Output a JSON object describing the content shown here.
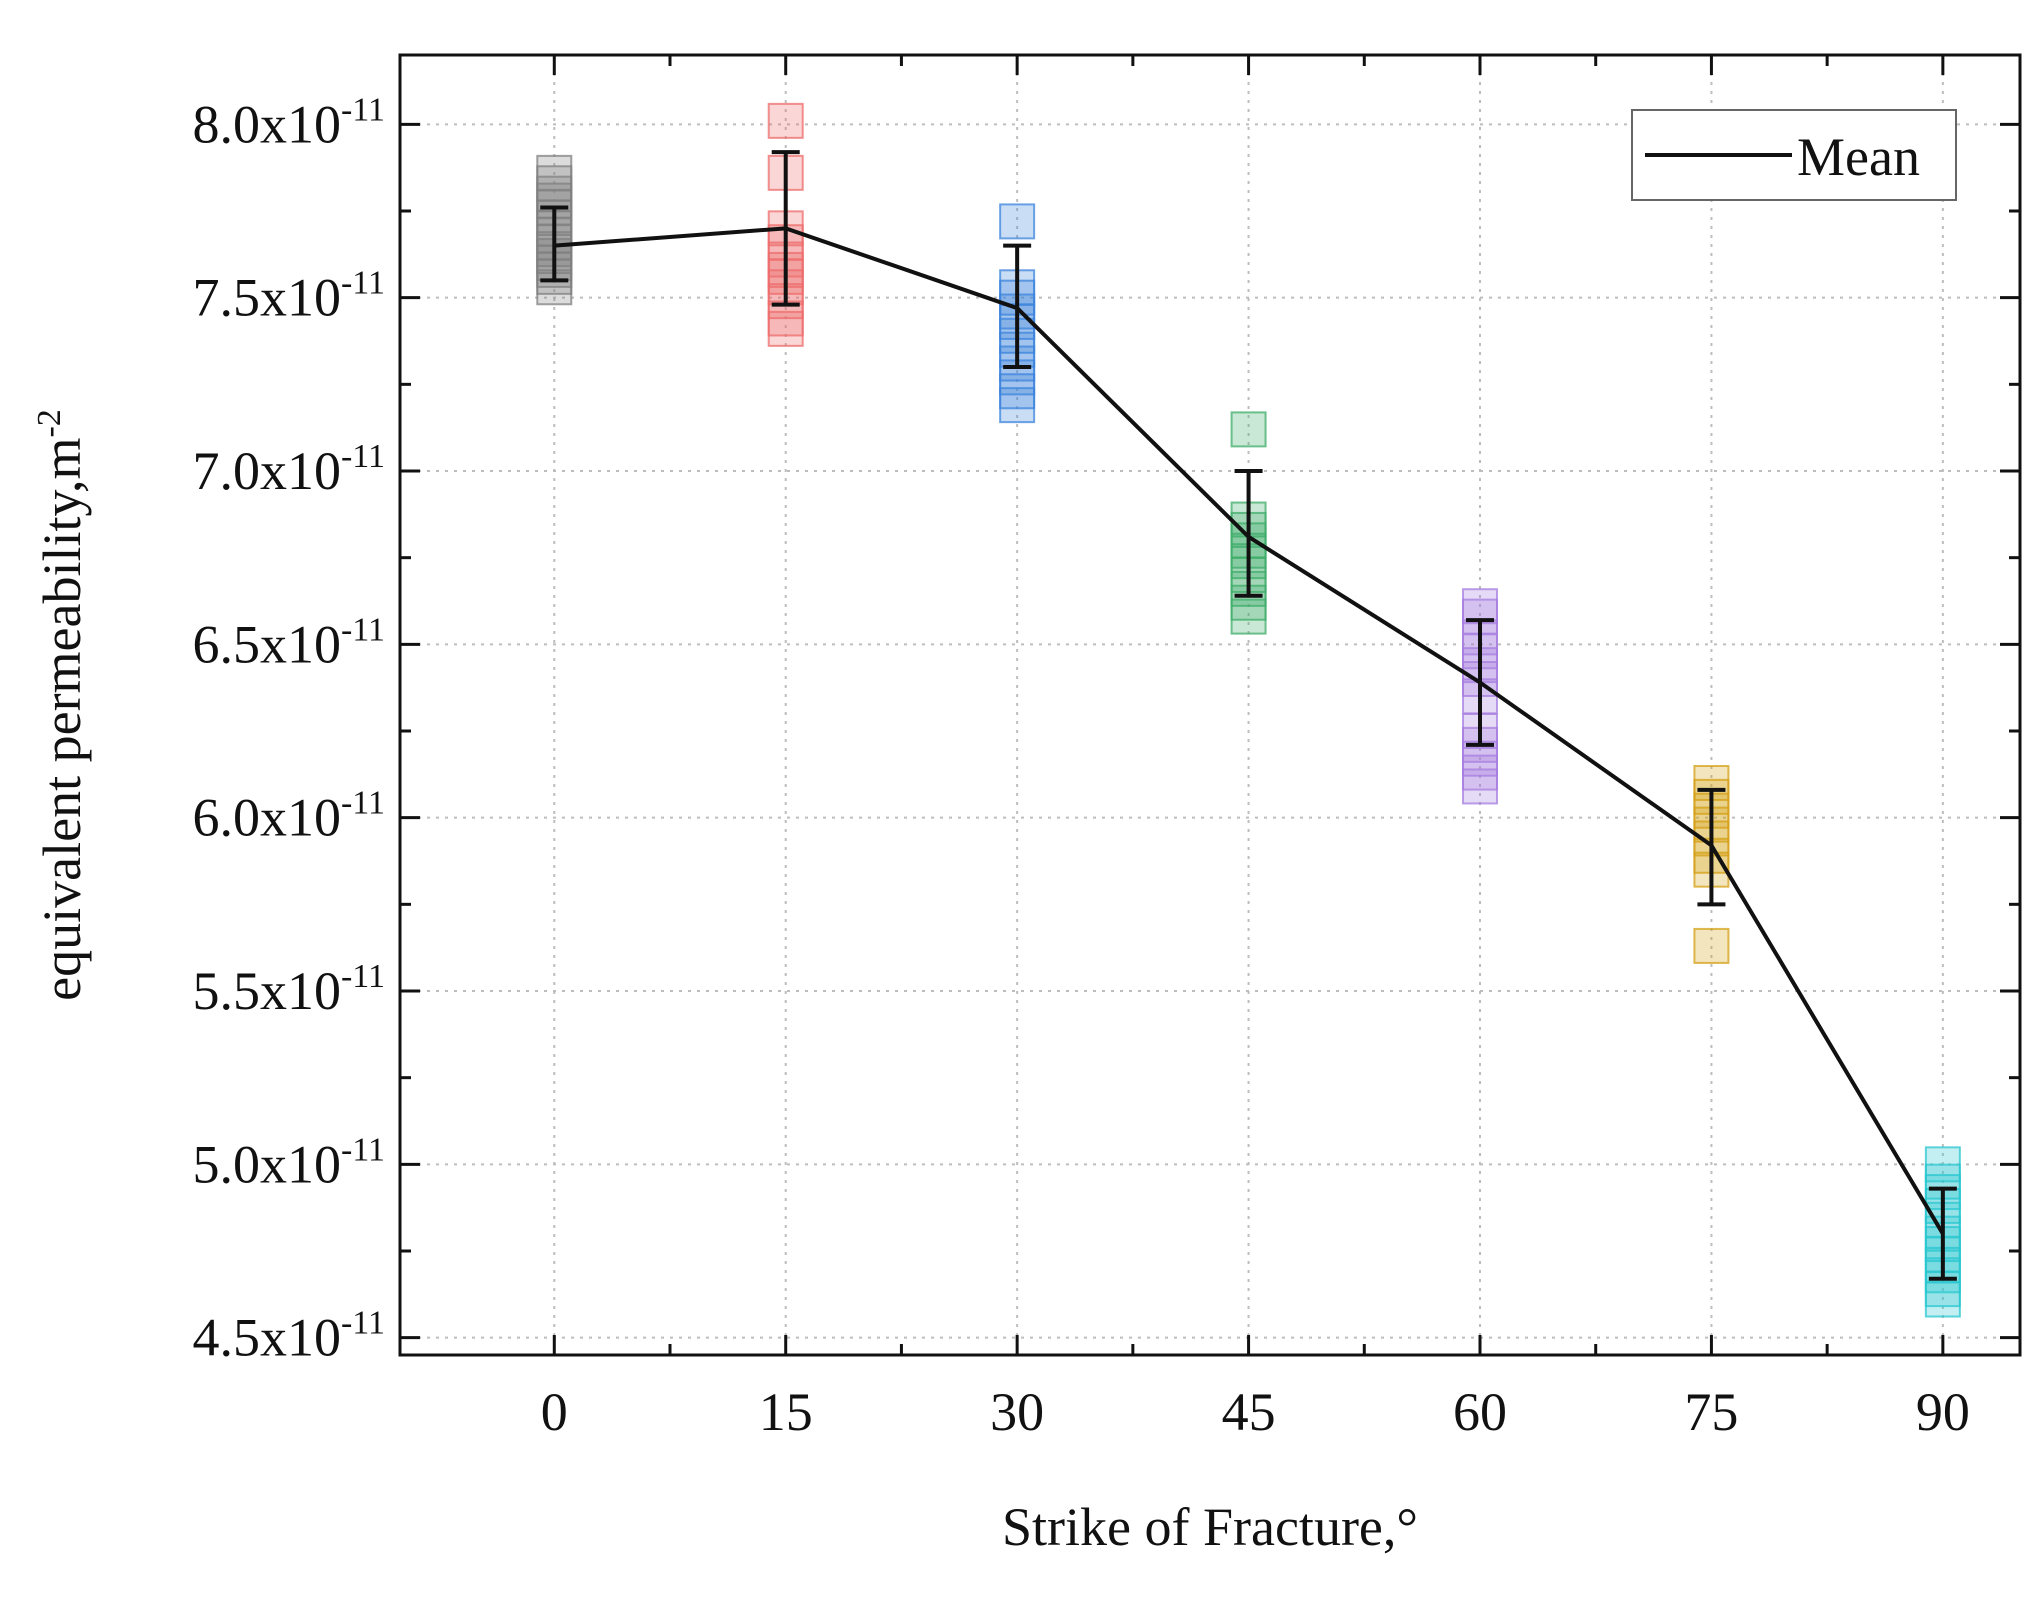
{
  "chart_data": {
    "type": "scatter",
    "xlabel": "Strike of Fracture,°",
    "ylabel": "equivalent permeability,m",
    "ylabel_superscript": "-2",
    "y_tick_exponent": "-11",
    "xlim": [
      -10,
      95
    ],
    "ylim": [
      4.45,
      8.2
    ],
    "x_ticks": [
      0,
      15,
      30,
      45,
      60,
      75,
      90
    ],
    "x_tick_labels": [
      "0",
      "15",
      "30",
      "45",
      "60",
      "75",
      "90"
    ],
    "y_ticks": [
      4.5,
      5.0,
      5.5,
      6.0,
      6.5,
      7.0,
      7.5,
      8.0
    ],
    "y_tick_labels": [
      "4.5x10",
      "5.0x10",
      "5.5x10",
      "6.0x10",
      "6.5x10",
      "7.0x10",
      "7.5x10",
      "8.0x10"
    ],
    "grid": true,
    "legend": {
      "position": "top-right",
      "entries": [
        "Mean"
      ]
    },
    "series": [
      {
        "name": "Mean",
        "x": [
          0,
          15,
          30,
          45,
          60,
          75,
          90
        ],
        "y": [
          7.65,
          7.7,
          7.47,
          6.81,
          6.39,
          5.92,
          4.8
        ],
        "color": "#111111"
      }
    ],
    "error_bars": [
      {
        "x": 0,
        "low": 7.55,
        "high": 7.76
      },
      {
        "x": 15,
        "low": 7.48,
        "high": 7.92
      },
      {
        "x": 30,
        "low": 7.3,
        "high": 7.65
      },
      {
        "x": 45,
        "low": 6.64,
        "high": 7.0
      },
      {
        "x": 60,
        "low": 6.21,
        "high": 6.57
      },
      {
        "x": 75,
        "low": 5.75,
        "high": 6.08
      },
      {
        "x": 90,
        "low": 4.67,
        "high": 4.93
      }
    ],
    "samples": [
      {
        "x": 0,
        "color": "#808080",
        "values": [
          7.53,
          7.56,
          7.58,
          7.6,
          7.62,
          7.64,
          7.66,
          7.68,
          7.7,
          7.73,
          7.76,
          7.78,
          7.8,
          7.83,
          7.86
        ]
      },
      {
        "x": 15,
        "color": "#ee6c6c",
        "values": [
          7.41,
          7.44,
          7.49,
          7.53,
          7.56,
          7.58,
          7.61,
          7.66,
          7.7,
          7.86,
          8.01
        ]
      },
      {
        "x": 30,
        "color": "#3c84dc",
        "values": [
          7.19,
          7.23,
          7.27,
          7.31,
          7.35,
          7.39,
          7.43,
          7.46,
          7.5,
          7.53,
          7.72
        ]
      },
      {
        "x": 45,
        "color": "#3fae6a",
        "values": [
          6.58,
          6.62,
          6.66,
          6.7,
          6.74,
          6.77,
          6.8,
          6.83,
          6.86,
          7.12
        ]
      },
      {
        "x": 60,
        "color": "#a77ee0",
        "values": [
          6.09,
          6.13,
          6.17,
          6.21,
          6.25,
          6.35,
          6.4,
          6.44,
          6.48,
          6.52,
          6.58,
          6.61
        ]
      },
      {
        "x": 75,
        "color": "#d4a017",
        "values": [
          5.63,
          5.85,
          5.89,
          5.94,
          5.98,
          6.02,
          6.06,
          6.1
        ]
      },
      {
        "x": 90,
        "color": "#2ac7cf",
        "values": [
          4.61,
          4.64,
          4.68,
          4.71,
          4.74,
          4.77,
          4.8,
          4.84,
          4.88,
          4.92,
          4.95,
          5.0
        ]
      }
    ]
  }
}
